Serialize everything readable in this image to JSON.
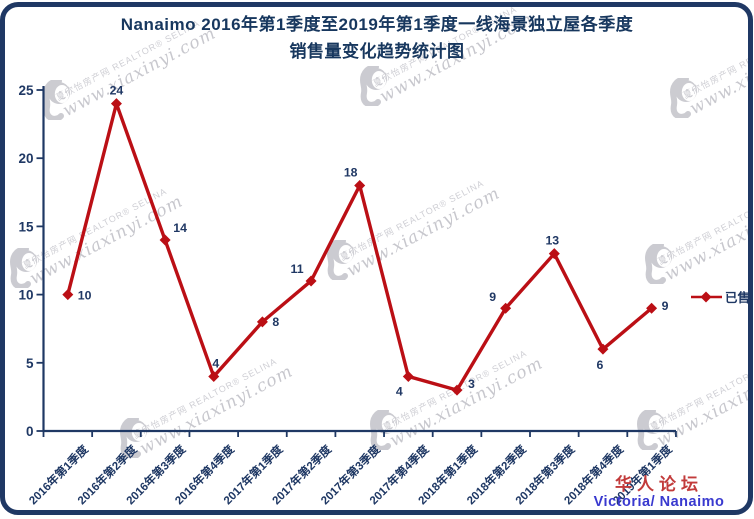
{
  "title": {
    "line1": "Nanaimo 2016年第1季度至2019年第1季度一线海景独立屋各季度",
    "line2": "销售量变化趋势统计图"
  },
  "chart_data": {
    "type": "line",
    "title": "Nanaimo 2016年第1季度至2019年第1季度一线海景独立屋各季度销售量变化趋势统计图",
    "categories": [
      "2016年第1季度",
      "2016年第2季度",
      "2016年第3季度",
      "2016年第4季度",
      "2017年第1季度",
      "2017年第2季度",
      "2017年第3季度",
      "2017年第4季度",
      "2018年第1季度",
      "2018年第2季度",
      "2018年第3季度",
      "2018年第4季度",
      "2019年第1季度"
    ],
    "series": [
      {
        "name": "已售",
        "values": [
          10,
          24,
          14,
          4,
          8,
          11,
          18,
          4,
          3,
          9,
          13,
          6,
          9
        ]
      }
    ],
    "xlabel": "",
    "ylabel": "",
    "ylim": [
      0,
      25
    ],
    "yticks": [
      0,
      5,
      10,
      15,
      20,
      25
    ],
    "grid": false,
    "legend_position": "right",
    "data_labels": true,
    "marker": "diamond"
  },
  "legend": {
    "sold_label": "已售"
  },
  "watermark": {
    "brand_line": "夏欣怡房产网  REALTOR® SELINA",
    "site_line": "www.xiaxinyi.com",
    "logo": "woman-silhouette-logo"
  },
  "footer": {
    "forum": "华人论坛",
    "location": "Victoria/ Nanaimo"
  },
  "colors": {
    "line": "#bb0f15",
    "axis": "#1f3864",
    "data_label": "#203864",
    "title": "#17375e",
    "footer_red": "#c23b3b",
    "footer_blue": "#3939cf",
    "watermark_gray": "#9b9ba6",
    "background": "#ffffff"
  }
}
